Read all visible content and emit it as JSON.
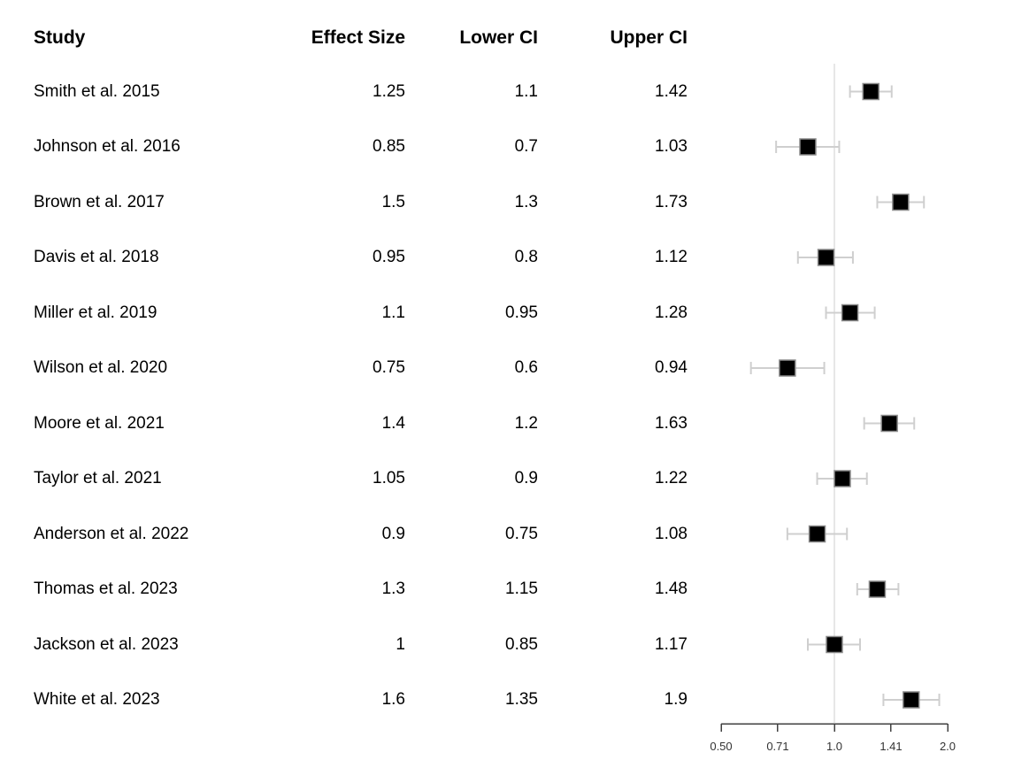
{
  "table": {
    "columns": [
      "Study",
      "Effect Size",
      "Lower CI",
      "Upper CI"
    ],
    "rows": [
      {
        "study": "Smith et al. 2015",
        "effect_size": "1.25",
        "lower_ci": "1.1",
        "upper_ci": "1.42"
      },
      {
        "study": "Johnson et al. 2016",
        "effect_size": "0.85",
        "lower_ci": "0.7",
        "upper_ci": "1.03"
      },
      {
        "study": "Brown et al. 2017",
        "effect_size": "1.5",
        "lower_ci": "1.3",
        "upper_ci": "1.73"
      },
      {
        "study": "Davis et al. 2018",
        "effect_size": "0.95",
        "lower_ci": "0.8",
        "upper_ci": "1.12"
      },
      {
        "study": "Miller et al. 2019",
        "effect_size": "1.1",
        "lower_ci": "0.95",
        "upper_ci": "1.28"
      },
      {
        "study": "Wilson et al. 2020",
        "effect_size": "0.75",
        "lower_ci": "0.6",
        "upper_ci": "0.94"
      },
      {
        "study": "Moore et al. 2021",
        "effect_size": "1.4",
        "lower_ci": "1.2",
        "upper_ci": "1.63"
      },
      {
        "study": "Taylor et al. 2021",
        "effect_size": "1.05",
        "lower_ci": "0.9",
        "upper_ci": "1.22"
      },
      {
        "study": "Anderson et al. 2022",
        "effect_size": "0.9",
        "lower_ci": "0.75",
        "upper_ci": "1.08"
      },
      {
        "study": "Thomas et al. 2023",
        "effect_size": "1.3",
        "lower_ci": "1.15",
        "upper_ci": "1.48"
      },
      {
        "study": "Jackson et al. 2023",
        "effect_size": "1",
        "lower_ci": "0.85",
        "upper_ci": "1.17"
      },
      {
        "study": "White et al. 2023",
        "effect_size": "1.6",
        "lower_ci": "1.35",
        "upper_ci": "1.9"
      }
    ]
  },
  "chart_data": {
    "type": "scatter",
    "subtype": "forest-plot",
    "studies": [
      "Smith et al. 2015",
      "Johnson et al. 2016",
      "Brown et al. 2017",
      "Davis et al. 2018",
      "Miller et al. 2019",
      "Wilson et al. 2020",
      "Moore et al. 2021",
      "Taylor et al. 2021",
      "Anderson et al. 2022",
      "Thomas et al. 2023",
      "Jackson et al. 2023",
      "White et al. 2023"
    ],
    "effect_sizes": [
      1.25,
      0.85,
      1.5,
      0.95,
      1.1,
      0.75,
      1.4,
      1.05,
      0.9,
      1.3,
      1.0,
      1.6
    ],
    "lower_ci": [
      1.1,
      0.7,
      1.3,
      0.8,
      0.95,
      0.6,
      1.2,
      0.9,
      0.75,
      1.15,
      0.85,
      1.35
    ],
    "upper_ci": [
      1.42,
      1.03,
      1.73,
      1.12,
      1.28,
      0.94,
      1.63,
      1.22,
      1.08,
      1.48,
      1.17,
      1.9
    ],
    "x_scale": "log2",
    "xlim": [
      0.5,
      2.0
    ],
    "x_tick_labels": [
      "0.50",
      "0.71",
      "1.0",
      "1.41",
      "2.0"
    ],
    "x_tick_values": [
      0.5,
      0.7071,
      1.0,
      1.4142,
      2.0
    ],
    "reference_line": 1.0,
    "grid": false,
    "legend": "none",
    "title": "",
    "xlabel": "",
    "ylabel": ""
  },
  "colors": {
    "marker_fill": "#000000",
    "marker_border": "#8c8c8c",
    "ci_bar": "#cfcfcf",
    "reference_line": "#e7e7e7",
    "axis": "#404040",
    "tick_label": "#333333",
    "text": "#000000"
  }
}
